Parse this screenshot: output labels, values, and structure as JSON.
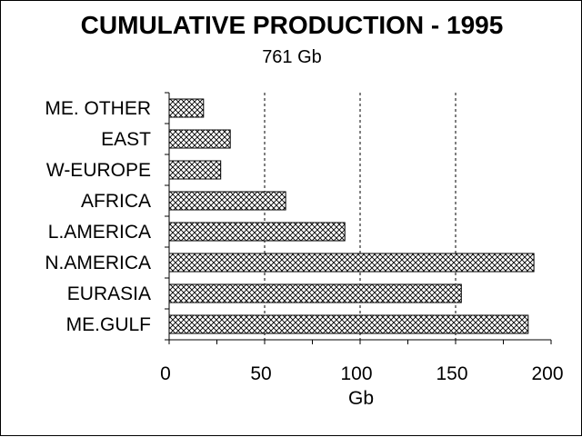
{
  "chart_data": {
    "type": "bar",
    "orientation": "horizontal",
    "title": "CUMULATIVE PRODUCTION - 1995",
    "subtitle": "761 Gb",
    "xlabel": "Gb",
    "ylabel": "",
    "xlim": [
      0,
      200
    ],
    "xticks": [
      0,
      50,
      100,
      150,
      200
    ],
    "grid": "vertical-dashed",
    "legend": "none",
    "categories": [
      "ME. OTHER",
      "EAST",
      "W-EUROPE",
      "AFRICA",
      "L.AMERICA",
      "N.AMERICA",
      "EURASIA",
      "ME.GULF"
    ],
    "values": [
      18,
      32,
      27,
      61,
      92,
      191,
      153,
      188
    ],
    "bar_fill": "crosshatch",
    "colors": {
      "bar_stroke": "#000000",
      "hatch": "#000000",
      "background": "#ffffff",
      "grid": "#000000"
    }
  }
}
